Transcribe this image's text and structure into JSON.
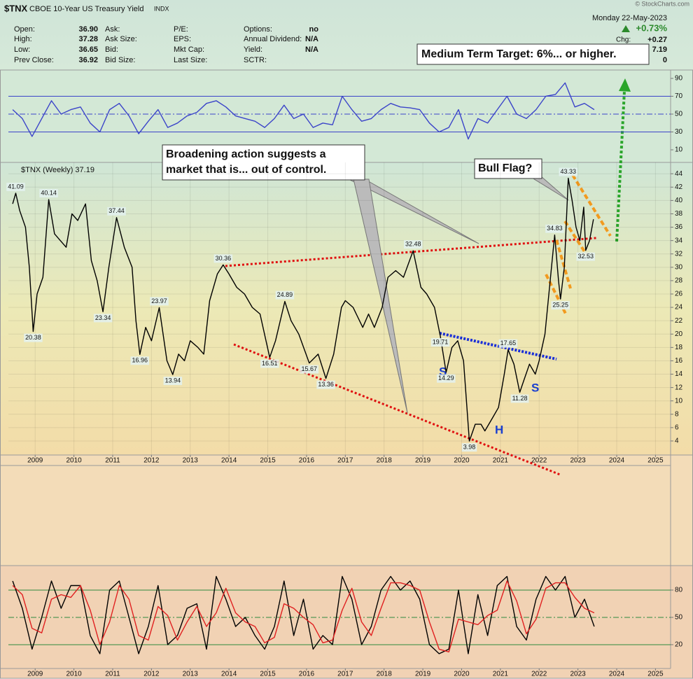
{
  "header": {
    "symbol": "$TNX",
    "name": "CBOE 10-Year US Treasury Yield",
    "exchange": "INDX",
    "watermark": "© StockCharts.com",
    "date": "Monday  22-May-2023",
    "change_pct": "+0.73%",
    "chg_label": "Chg:",
    "chg": "+0.27",
    "line3": "7.19",
    "line4": "0",
    "fields": [
      [
        {
          "label": "Open:",
          "value": "36.90"
        },
        {
          "label": "High:",
          "value": "37.28"
        },
        {
          "label": "Low:",
          "value": "36.65"
        },
        {
          "label": "Prev Close:",
          "value": "36.92"
        }
      ],
      [
        {
          "label": "Ask:"
        },
        {
          "label": "Ask Size:"
        },
        {
          "label": "Bid:"
        },
        {
          "label": "Bid Size:"
        }
      ],
      [
        {
          "label": "P/E:"
        },
        {
          "label": "EPS:"
        },
        {
          "label": "Mkt Cap:"
        },
        {
          "label": "Last Size:"
        }
      ],
      [
        {
          "label": "Options:",
          "value": "no"
        },
        {
          "label": "Annual Dividend:",
          "value": "N/A"
        },
        {
          "label": "Yield:",
          "value": "N/A"
        },
        {
          "label": "SCTR:"
        }
      ]
    ]
  },
  "chart_data": [
    {
      "type": "line",
      "x": [
        2008.42,
        2008.67,
        2008.92,
        2009.17,
        2009.42,
        2009.67,
        2009.92,
        2010.17,
        2010.42,
        2010.67,
        2010.92,
        2011.17,
        2011.42,
        2011.67,
        2011.92,
        2012.17,
        2012.42,
        2012.67,
        2012.92,
        2013.17,
        2013.42,
        2013.67,
        2013.92,
        2014.17,
        2014.42,
        2014.67,
        2014.92,
        2015.17,
        2015.42,
        2015.67,
        2015.92,
        2016.17,
        2016.42,
        2016.67,
        2016.92,
        2017.17,
        2017.42,
        2017.67,
        2017.92,
        2018.17,
        2018.42,
        2018.67,
        2018.92,
        2019.17,
        2019.42,
        2019.67,
        2019.92,
        2020.17,
        2020.42,
        2020.67,
        2020.92,
        2021.17,
        2021.42,
        2021.67,
        2021.92,
        2022.17,
        2022.42,
        2022.67,
        2022.92,
        2023.17,
        2023.42
      ],
      "series": [
        {
          "color": "#3b44c9",
          "values": [
            55,
            45,
            25,
            45,
            65,
            50,
            55,
            58,
            40,
            30,
            55,
            62,
            48,
            28,
            42,
            55,
            35,
            40,
            48,
            52,
            62,
            65,
            58,
            48,
            45,
            42,
            35,
            45,
            60,
            45,
            50,
            35,
            40,
            38,
            70,
            55,
            42,
            45,
            55,
            62,
            58,
            57,
            55,
            40,
            30,
            35,
            55,
            22,
            45,
            40,
            55,
            70,
            50,
            45,
            55,
            70,
            72,
            85,
            58,
            62,
            55
          ]
        }
      ],
      "xlim": [
        2008.31,
        2025.39
      ],
      "ylim": [
        -4.1,
        99.4
      ],
      "yticks": [
        90,
        70,
        50,
        30,
        10
      ],
      "reference_lines": [
        {
          "value": 70,
          "style": "solid",
          "color": "#3b44c9"
        },
        {
          "value": 50,
          "style": "dashdot",
          "color": "#3b44c9"
        },
        {
          "value": 30,
          "style": "solid",
          "color": "#3b44c9"
        }
      ]
    },
    {
      "type": "line",
      "x": [
        2008.42,
        2008.5,
        2008.6,
        2008.75,
        2008.85,
        2008.95,
        2009.05,
        2009.2,
        2009.35,
        2009.5,
        2009.65,
        2009.8,
        2009.95,
        2010.1,
        2010.3,
        2010.45,
        2010.6,
        2010.75,
        2010.9,
        2011.1,
        2011.3,
        2011.5,
        2011.6,
        2011.7,
        2011.85,
        2012.0,
        2012.2,
        2012.4,
        2012.55,
        2012.7,
        2012.85,
        2013.0,
        2013.2,
        2013.35,
        2013.5,
        2013.7,
        2013.85,
        2014.0,
        2014.2,
        2014.4,
        2014.6,
        2014.8,
        2015.05,
        2015.2,
        2015.44,
        2015.6,
        2015.8,
        2016.07,
        2016.3,
        2016.5,
        2016.7,
        2016.9,
        2017.0,
        2017.2,
        2017.45,
        2017.6,
        2017.75,
        2017.95,
        2018.1,
        2018.3,
        2018.5,
        2018.75,
        2018.95,
        2019.1,
        2019.3,
        2019.45,
        2019.6,
        2019.75,
        2019.9,
        2020.05,
        2020.2,
        2020.35,
        2020.5,
        2020.6,
        2020.8,
        2020.95,
        2021.1,
        2021.2,
        2021.35,
        2021.5,
        2021.6,
        2021.75,
        2021.9,
        2022.0,
        2022.15,
        2022.3,
        2022.4,
        2022.5,
        2022.55,
        2022.65,
        2022.75,
        2022.85,
        2022.95,
        2023.05,
        2023.15,
        2023.2,
        2023.3,
        2023.4
      ],
      "series": [
        {
          "name": "$TNX (Weekly) 37.19",
          "color": "#000000",
          "values": [
            39.5,
            41.09,
            38.5,
            36,
            30,
            20.38,
            26,
            28.5,
            40.14,
            35,
            34,
            33,
            38,
            37,
            39.5,
            31,
            28,
            23.34,
            30,
            37.44,
            33,
            30,
            22,
            16.96,
            21,
            19,
            23.97,
            16,
            13.94,
            17,
            16,
            19,
            18,
            17,
            25,
            29,
            30.36,
            29,
            27,
            26,
            24,
            23,
            16.51,
            19,
            24.89,
            22,
            20,
            15.67,
            17,
            13.36,
            17,
            24,
            25,
            24,
            21,
            23,
            21,
            24,
            28.5,
            29.5,
            28.5,
            32.48,
            27,
            26,
            24,
            19.71,
            14.29,
            18,
            19,
            16,
            3.98,
            6.5,
            6.5,
            5.5,
            7.5,
            9,
            14,
            17.65,
            15.5,
            11.28,
            13,
            15.5,
            14,
            16,
            20,
            29,
            34.83,
            28,
            25.25,
            30,
            43.33,
            40,
            36,
            34,
            39,
            32.53,
            34,
            37.19
          ]
        }
      ],
      "point_labels": {
        "x": [
          2008.5,
          2008.95,
          2009.35,
          2010.75,
          2011.1,
          2011.7,
          2012.2,
          2012.55,
          2013.85,
          2015.05,
          2015.44,
          2016.07,
          2016.5,
          2018.75,
          2019.45,
          2019.6,
          2020.2,
          2021.2,
          2021.5,
          2022.4,
          2022.55,
          2022.75,
          2023.2
        ],
        "values": [
          41.09,
          20.38,
          40.14,
          23.34,
          37.44,
          16.96,
          23.97,
          13.94,
          30.36,
          16.51,
          24.89,
          15.67,
          13.36,
          32.48,
          19.71,
          14.29,
          3.98,
          17.65,
          11.28,
          34.83,
          25.25,
          43.33,
          32.53
        ]
      },
      "xlim": [
        2008.31,
        2025.39
      ],
      "xticks": [
        2009,
        2010,
        2011,
        2012,
        2013,
        2014,
        2015,
        2016,
        2017,
        2018,
        2019,
        2020,
        2021,
        2022,
        2023,
        2024,
        2025
      ],
      "ylim": [
        1.9,
        45.7
      ],
      "yticks": [
        4,
        6,
        8,
        10,
        12,
        14,
        16,
        18,
        20,
        22,
        24,
        26,
        28,
        30,
        32,
        34,
        36,
        38,
        40,
        42,
        44
      ],
      "grid": true,
      "annotations": {
        "broadening": [
          "Broadening action suggests a",
          "market that is... out of control."
        ],
        "bull_flag": "Bull Flag?",
        "target": "Medium Term Target: 6%... or higher.",
        "pattern_labels": [
          "S",
          "H",
          "S"
        ]
      }
    },
    {
      "type": "line",
      "x": [
        2008.42,
        2008.67,
        2008.92,
        2009.17,
        2009.42,
        2009.67,
        2009.92,
        2010.17,
        2010.42,
        2010.67,
        2010.92,
        2011.17,
        2011.42,
        2011.67,
        2011.92,
        2012.17,
        2012.42,
        2012.67,
        2012.92,
        2013.17,
        2013.42,
        2013.67,
        2013.92,
        2014.17,
        2014.42,
        2014.67,
        2014.92,
        2015.17,
        2015.42,
        2015.67,
        2015.92,
        2016.17,
        2016.42,
        2016.67,
        2016.92,
        2017.17,
        2017.42,
        2017.67,
        2017.92,
        2018.17,
        2018.42,
        2018.67,
        2018.92,
        2019.17,
        2019.42,
        2019.67,
        2019.92,
        2020.17,
        2020.42,
        2020.67,
        2020.92,
        2021.17,
        2021.42,
        2021.67,
        2021.92,
        2022.17,
        2022.42,
        2022.67,
        2022.92,
        2023.17,
        2023.42
      ],
      "series": [
        {
          "color": "#000000",
          "values": [
            90,
            60,
            15,
            50,
            90,
            60,
            85,
            85,
            30,
            10,
            80,
            90,
            50,
            10,
            40,
            85,
            20,
            30,
            60,
            65,
            15,
            95,
            70,
            40,
            50,
            30,
            15,
            40,
            90,
            30,
            70,
            15,
            30,
            20,
            95,
            70,
            20,
            40,
            80,
            95,
            80,
            90,
            70,
            20,
            10,
            15,
            80,
            10,
            75,
            30,
            85,
            95,
            40,
            25,
            70,
            95,
            80,
            95,
            50,
            70,
            40
          ]
        },
        {
          "color": "#e02020",
          "values": [
            85,
            75,
            38,
            33,
            70,
            75,
            72,
            85,
            58,
            20,
            45,
            85,
            70,
            30,
            25,
            62,
            52,
            25,
            45,
            62,
            40,
            55,
            82,
            55,
            45,
            40,
            22,
            28,
            65,
            60,
            50,
            42,
            22,
            25,
            58,
            82,
            45,
            30,
            60,
            88,
            88,
            85,
            80,
            45,
            15,
            12,
            48,
            45,
            42,
            52,
            58,
            90,
            68,
            32,
            48,
            82,
            88,
            88,
            72,
            60,
            55
          ]
        }
      ],
      "xlim": [
        2008.31,
        2025.39
      ],
      "xticks": [
        2009,
        2010,
        2011,
        2012,
        2013,
        2014,
        2015,
        2016,
        2017,
        2018,
        2019,
        2020,
        2021,
        2022,
        2023,
        2024,
        2025
      ],
      "ylim": [
        -6.2,
        106.9
      ],
      "yticks": [
        80,
        50,
        20
      ],
      "reference_lines": [
        {
          "value": 80,
          "style": "solid",
          "color": "#2e8b3e"
        },
        {
          "value": 50,
          "style": "dashdot",
          "color": "#2e8b3e"
        },
        {
          "value": 20,
          "style": "solid",
          "color": "#2e8b3e"
        }
      ]
    }
  ]
}
